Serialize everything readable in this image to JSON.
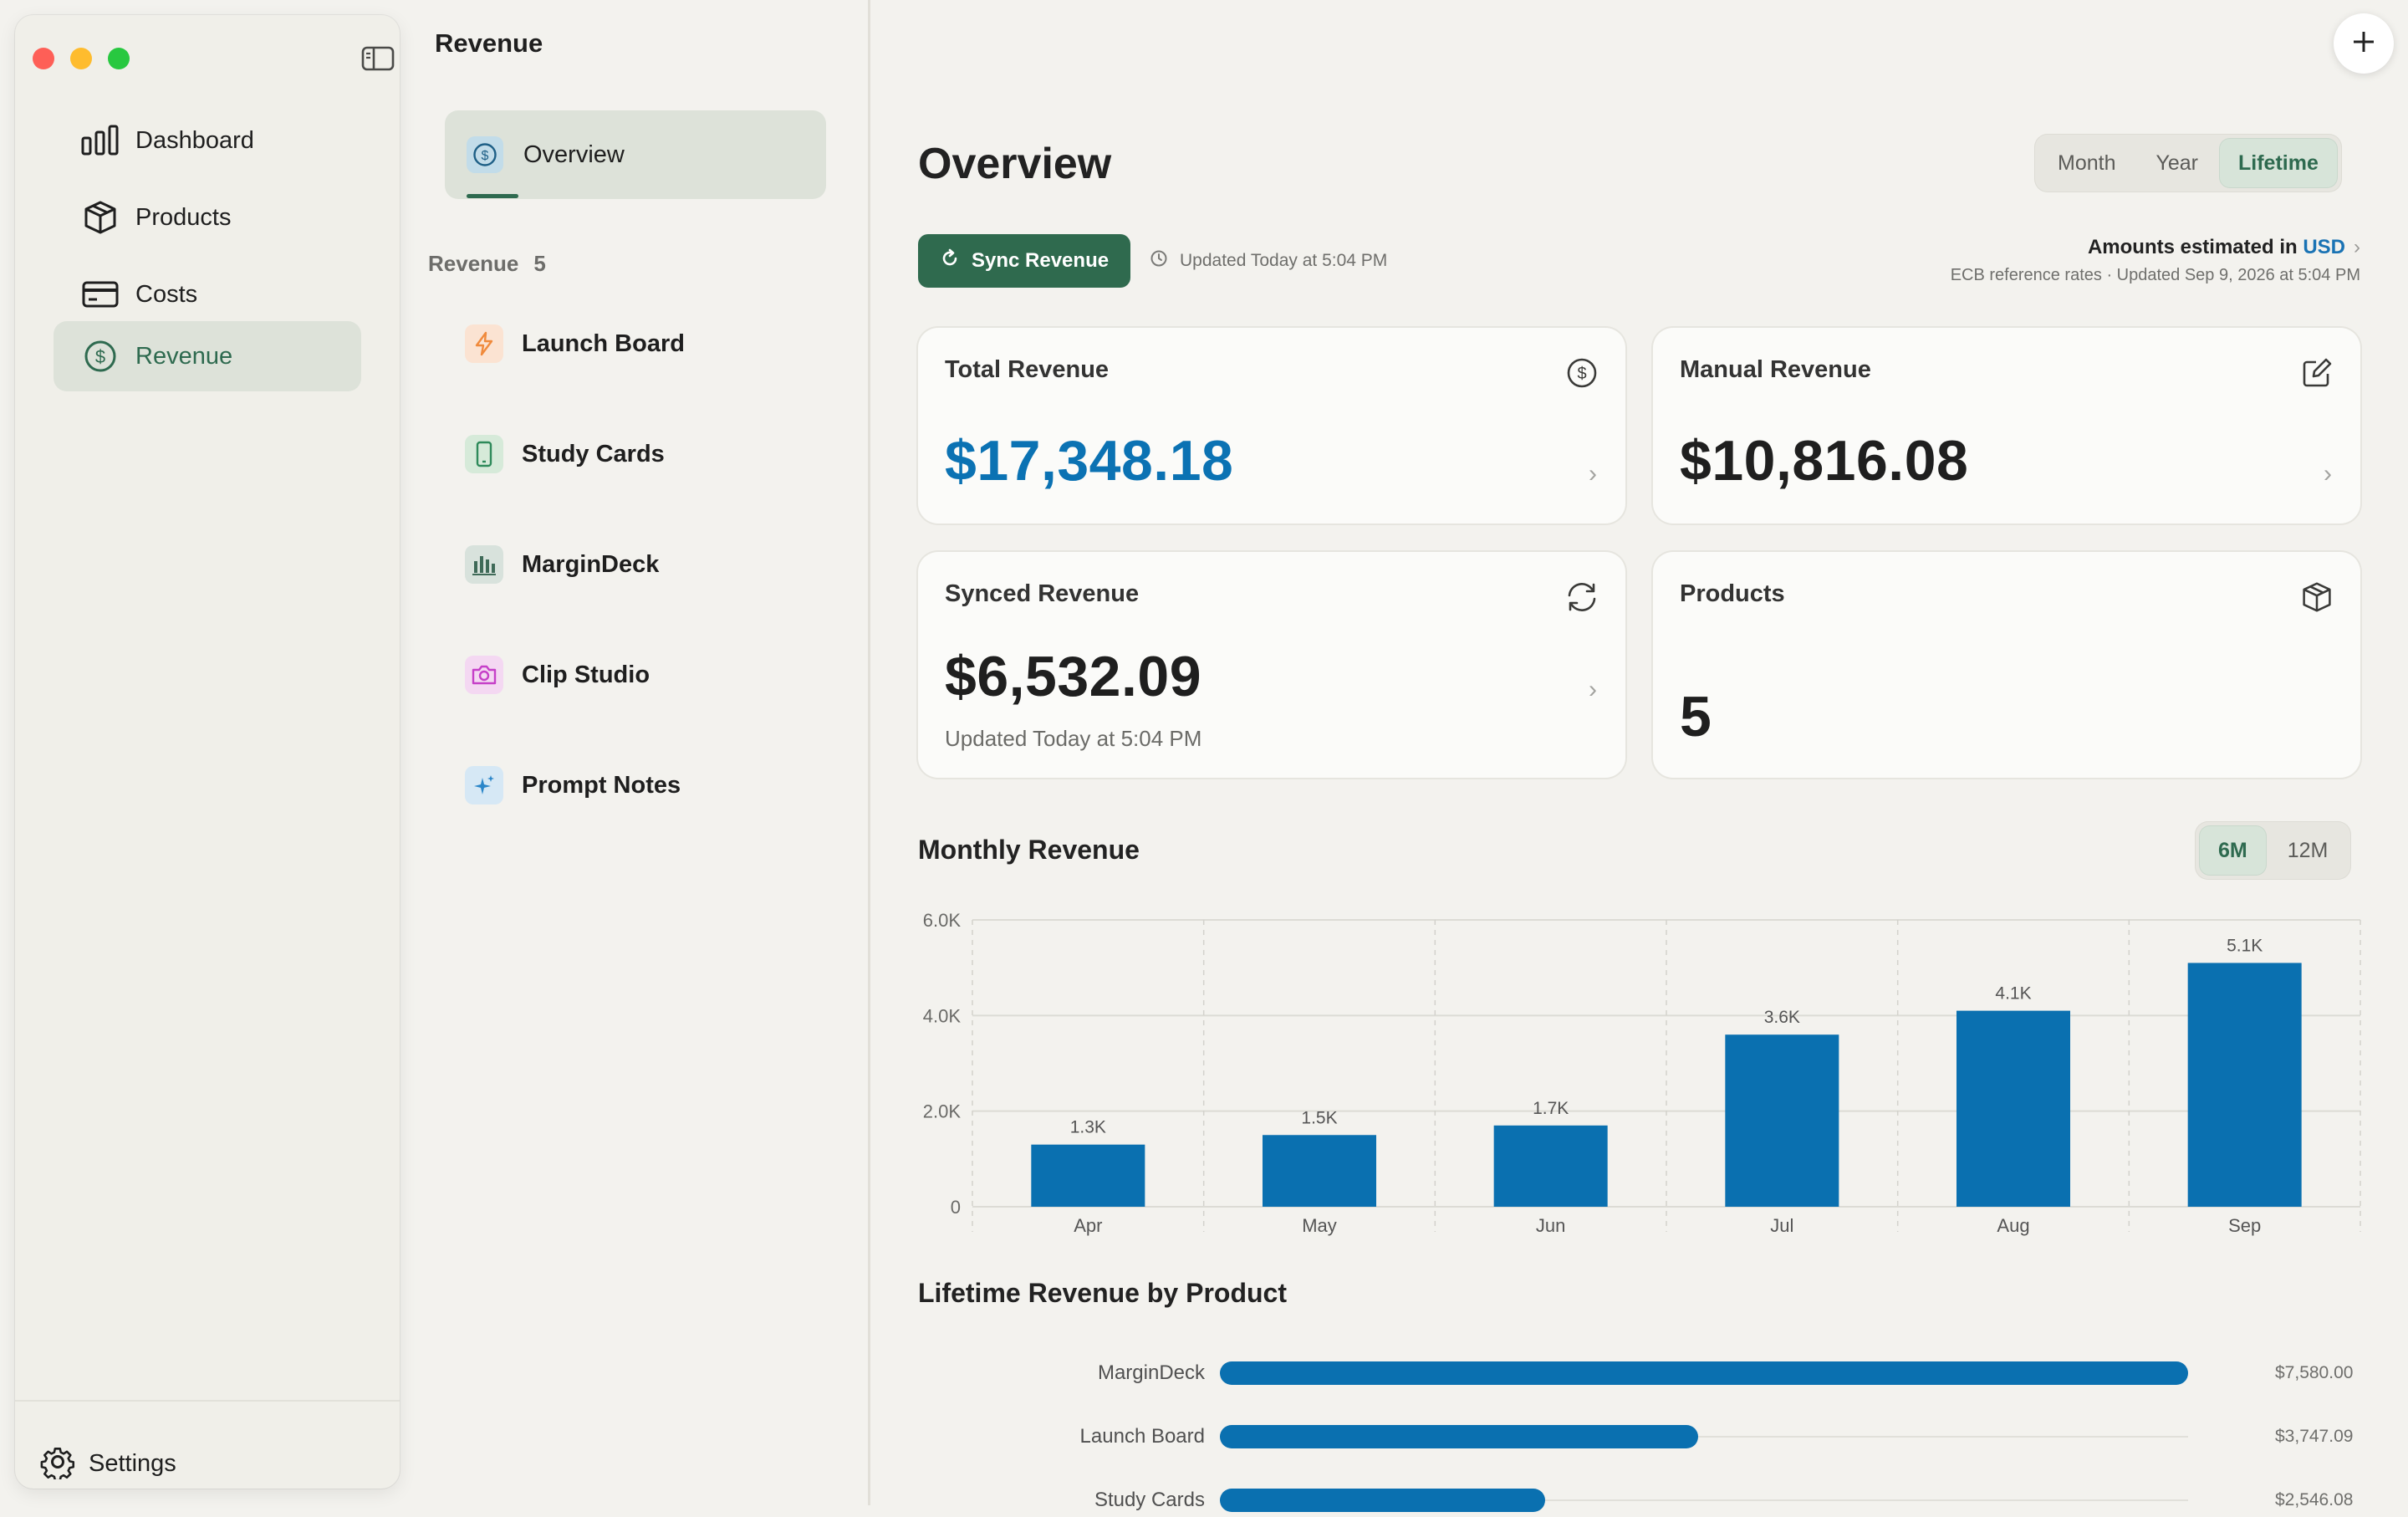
{
  "sidebar": {
    "nav": [
      {
        "label": "Dashboard",
        "icon": "bar-chart-icon",
        "active": false
      },
      {
        "label": "Products",
        "icon": "box-icon",
        "active": false
      },
      {
        "label": "Costs",
        "icon": "credit-card-icon",
        "active": false
      },
      {
        "label": "Revenue",
        "icon": "dollar-circle-icon",
        "active": true
      }
    ],
    "settings_label": "Settings"
  },
  "midcol": {
    "title": "Revenue",
    "overview_label": "Overview",
    "section_label": "Revenue",
    "section_count": "5",
    "products": [
      {
        "label": "Launch Board",
        "icon": "bolt-icon",
        "color": "#f08a3c",
        "bg": "#fbe3d2"
      },
      {
        "label": "Study Cards",
        "icon": "phone-icon",
        "color": "#2e8a5a",
        "bg": "#d6ead9"
      },
      {
        "label": "MarginDeck",
        "icon": "bars-icon",
        "color": "#3f6a58",
        "bg": "#d8e2dc"
      },
      {
        "label": "Clip Studio",
        "icon": "camera-icon",
        "color": "#c640c8",
        "bg": "#f4d8f2"
      },
      {
        "label": "Prompt Notes",
        "icon": "sparkle-icon",
        "color": "#2b86c9",
        "bg": "#d6e8f5"
      }
    ]
  },
  "main": {
    "title": "Overview",
    "period_tabs": [
      "Month",
      "Year",
      "Lifetime"
    ],
    "period_active": "Lifetime",
    "sync_label": "Sync Revenue",
    "updated_text": "Updated Today at 5:04 PM",
    "amounts_prefix": "Amounts estimated in",
    "currency": "USD",
    "rates_note": "ECB reference rates · Updated Sep 9, 2026 at 5:04 PM",
    "cards": {
      "total": {
        "title": "Total Revenue",
        "value": "$17,348.18"
      },
      "manual": {
        "title": "Manual Revenue",
        "value": "$10,816.08"
      },
      "synced": {
        "title": "Synced Revenue",
        "value": "$6,532.09",
        "sub": "Updated Today at 5:04 PM"
      },
      "products": {
        "title": "Products",
        "value": "5"
      }
    },
    "monthly_title": "Monthly Revenue",
    "range_tabs": [
      "6M",
      "12M"
    ],
    "range_active": "6M",
    "lifetime_title": "Lifetime Revenue by Product"
  },
  "colors": {
    "accent": "#2f6a4e",
    "bar": "#0a70b0",
    "blue_value": "#0b72b3"
  },
  "chart_data": [
    {
      "type": "bar",
      "title": "Monthly Revenue",
      "categories": [
        "Apr",
        "May",
        "Jun",
        "Jul",
        "Aug",
        "Sep"
      ],
      "values": [
        1300,
        1500,
        1700,
        3600,
        4100,
        5100
      ],
      "value_labels": [
        "1.3K",
        "1.5K",
        "1.7K",
        "3.6K",
        "4.1K",
        "5.1K"
      ],
      "yticks": [
        0,
        2000,
        4000,
        6000
      ],
      "ytick_labels": [
        "0",
        "2.0K",
        "4.0K",
        "6.0K"
      ],
      "ylim": [
        0,
        6000
      ],
      "grid": true
    },
    {
      "type": "bar",
      "orientation": "horizontal",
      "title": "Lifetime Revenue by Product",
      "categories": [
        "MarginDeck",
        "Launch Board",
        "Study Cards"
      ],
      "values": [
        7580.0,
        3747.09,
        2546.08
      ],
      "value_labels": [
        "$7,580.00",
        "$3,747.09",
        "$2,546.08"
      ],
      "xlim": [
        0,
        7580
      ]
    }
  ]
}
